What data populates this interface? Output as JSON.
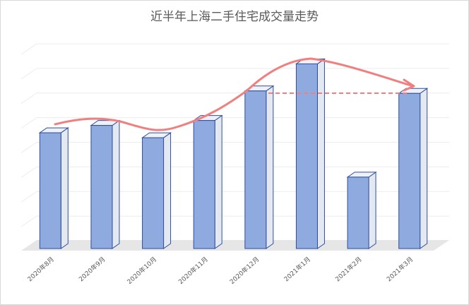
{
  "chart_data": {
    "type": "bar3d",
    "title": "近半年上海二手住宅成交量走势",
    "categories": [
      "2020年8月",
      "2020年9月",
      "2020年10月",
      "2020年11月",
      "2020年12月",
      "2021年1月",
      "2021年2月",
      "2021年3月"
    ],
    "values": [
      4.7,
      5.0,
      4.5,
      5.2,
      6.4,
      7.5,
      2.9,
      6.3
    ],
    "color": "#8eaadf",
    "ylim": [
      0,
      8
    ],
    "grid": true
  }
}
